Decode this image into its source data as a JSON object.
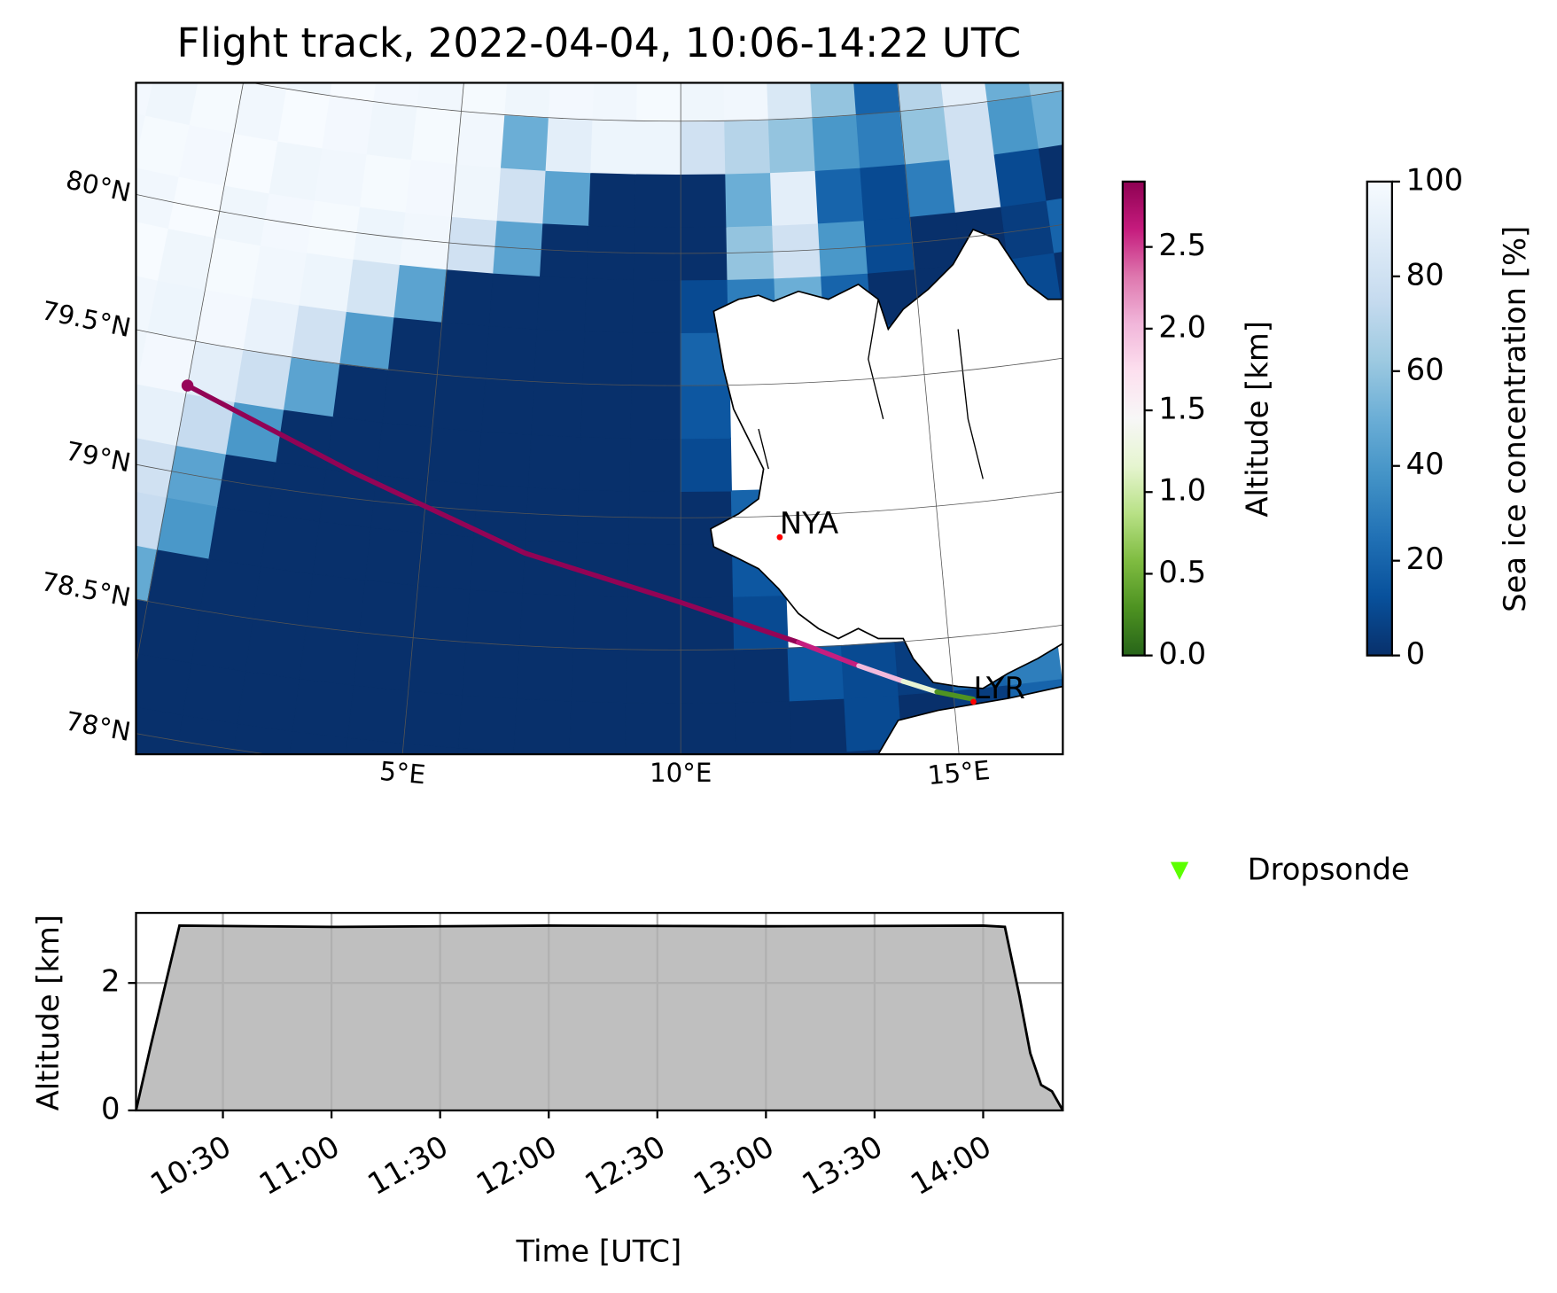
{
  "chart_data": [
    {
      "type": "map",
      "title": "Flight track, 2022-04-04, 10:06-14:22 UTC",
      "lon_ticks": [
        {
          "value": 5,
          "label": "5°E"
        },
        {
          "value": 10,
          "label": "10°E"
        },
        {
          "value": 15,
          "label": "15°E"
        }
      ],
      "lat_ticks": [
        {
          "value": 78,
          "label": "78°N"
        },
        {
          "value": 78.5,
          "label": "78.5°N"
        },
        {
          "value": 79,
          "label": "79°N"
        },
        {
          "value": 79.5,
          "label": "79.5°N"
        },
        {
          "value": 80,
          "label": "80°N"
        }
      ],
      "gridlines": {
        "lon": [
          0,
          5,
          10,
          15,
          20
        ],
        "lat": [
          78,
          78.5,
          79,
          79.5,
          80,
          80.5
        ]
      },
      "sea_ice": {
        "lon": [
          -2.5,
          -1.5,
          -0.5,
          0.5,
          1.5,
          2.5,
          3.5,
          4.5,
          5.5,
          6.5,
          7.5,
          8.5,
          9.5,
          10.5,
          11.5,
          12.5,
          13.5,
          14.5,
          15.5,
          16.5,
          17.5,
          18.5
        ],
        "lat": [
          78.0,
          78.2,
          78.4,
          78.6,
          78.8,
          79.0,
          79.2,
          79.4,
          79.6,
          79.8,
          80.0,
          80.2,
          80.4,
          80.6
        ],
        "values": [
          [
            0,
            0,
            0,
            0,
            0,
            0,
            0,
            0,
            0,
            0,
            0,
            0,
            0,
            0,
            0,
            0,
            0,
            10,
            null,
            null,
            null,
            null
          ],
          [
            0,
            0,
            0,
            0,
            0,
            0,
            0,
            0,
            0,
            0,
            0,
            0,
            0,
            0,
            0,
            0,
            10,
            0,
            5,
            20,
            null,
            null
          ],
          [
            78,
            42,
            0,
            0,
            0,
            0,
            0,
            0,
            0,
            0,
            0,
            0,
            0,
            0,
            0,
            15,
            10,
            5,
            20,
            30,
            null,
            null
          ],
          [
            96,
            82,
            48,
            0,
            0,
            0,
            0,
            0,
            0,
            0,
            0,
            0,
            0,
            0,
            10,
            null,
            null,
            null,
            null,
            null,
            null,
            null
          ],
          [
            98,
            94,
            76,
            40,
            0,
            0,
            0,
            0,
            0,
            0,
            0,
            0,
            0,
            0,
            15,
            null,
            null,
            null,
            null,
            null,
            null,
            null
          ],
          [
            97,
            99,
            80,
            45,
            0,
            0,
            0,
            0,
            0,
            0,
            0,
            0,
            0,
            0,
            20,
            null,
            null,
            null,
            null,
            null,
            null,
            null
          ],
          [
            95,
            98,
            92,
            75,
            40,
            0,
            0,
            0,
            0,
            0,
            0,
            0,
            0,
            10,
            null,
            null,
            null,
            null,
            null,
            null,
            null,
            null
          ],
          [
            99,
            96,
            98,
            90,
            78,
            45,
            0,
            0,
            0,
            0,
            0,
            0,
            0,
            15,
            null,
            null,
            null,
            null,
            null,
            null,
            null,
            null
          ],
          [
            100,
            97,
            95,
            98,
            93,
            80,
            42,
            0,
            0,
            0,
            0,
            0,
            0,
            20,
            null,
            null,
            null,
            10,
            0,
            null,
            15,
            0
          ],
          [
            98,
            100,
            96,
            99,
            97,
            95,
            82,
            45,
            0,
            0,
            0,
            0,
            0,
            10,
            30,
            50,
            20,
            0,
            0,
            0,
            10,
            0
          ],
          [
            99,
            97,
            100,
            96,
            98,
            99,
            95,
            97,
            80,
            45,
            0,
            0,
            0,
            0,
            60,
            80,
            40,
            10,
            0,
            0,
            5,
            20
          ],
          [
            97,
            99,
            98,
            100,
            96,
            97,
            99,
            98,
            96,
            80,
            45,
            0,
            0,
            0,
            50,
            90,
            20,
            10,
            30,
            80,
            10,
            0
          ],
          [
            98,
            96,
            99,
            97,
            100,
            98,
            96,
            99,
            97,
            50,
            90,
            95,
            95,
            80,
            70,
            60,
            40,
            30,
            60,
            80,
            40,
            50
          ],
          [
            99,
            98,
            97,
            99,
            96,
            100,
            98,
            97,
            99,
            96,
            98,
            97,
            99,
            96,
            97,
            85,
            60,
            20,
            70,
            90,
            50,
            60
          ]
        ],
        "colormap": [
          "#08306b",
          "#08519c",
          "#2171b5",
          "#4292c6",
          "#6baed6",
          "#9ecae1",
          "#c6dbef",
          "#deebf7",
          "#f7fbff"
        ],
        "colorbar": {
          "label": "Sea ice concentration [%]",
          "lim": [
            0,
            100
          ],
          "ticks": [
            0,
            20,
            40,
            60,
            80,
            100
          ]
        }
      },
      "track": {
        "lon": [
          0.0,
          3.5,
          7.0,
          10.0,
          12.2,
          13.3,
          14.1,
          14.7,
          15.35
        ],
        "lat": [
          79.33,
          79.1,
          78.85,
          78.68,
          78.52,
          78.42,
          78.35,
          78.3,
          78.26
        ],
        "altitude": [
          2.85,
          2.88,
          2.87,
          2.88,
          2.87,
          2.6,
          2.0,
          1.2,
          0.3
        ],
        "colormap": [
          "#276419",
          "#4d9221",
          "#7fbc41",
          "#b8e186",
          "#e6f5d0",
          "#f7f7f7",
          "#fde0ef",
          "#f1b6da",
          "#de77ae",
          "#c51b7d",
          "#8e0152"
        ],
        "colorbar": {
          "label": "Altitude [km]",
          "lim": [
            0,
            2.9
          ],
          "ticks": [
            {
              "value": 0,
              "label": "0.0"
            },
            0.5,
            {
              "value": 1,
              "label": "1.0"
            },
            1.5,
            {
              "value": 2,
              "label": "2.0"
            },
            2.5
          ]
        }
      },
      "stations": {
        "color": "#ff0000",
        "items": [
          {
            "name": "NYA",
            "lon": 11.92,
            "lat": 78.92
          },
          {
            "name": "LYR",
            "lon": 15.35,
            "lat": 78.25
          }
        ]
      },
      "legend": {
        "label": "Dropsonde",
        "color": "#5cff00"
      }
    },
    {
      "type": "area",
      "x": [
        "10:06",
        "10:10",
        "10:18",
        "11:00",
        "12:00",
        "13:00",
        "14:00",
        "14:06",
        "14:10",
        "14:13",
        "14:16",
        "14:19",
        "14:22"
      ],
      "values": [
        0,
        1.0,
        2.9,
        2.88,
        2.9,
        2.89,
        2.9,
        2.88,
        1.8,
        0.9,
        0.4,
        0.3,
        0
      ],
      "xlim": [
        "10:06",
        "14:22"
      ],
      "xticks": [
        "10:30",
        "11:00",
        "11:30",
        "12:00",
        "12:30",
        "13:00",
        "13:30",
        "14:00"
      ],
      "ylim": [
        0,
        3.1
      ],
      "yticks": [
        0,
        2
      ],
      "xlabel": "Time [UTC]",
      "ylabel": "Altitude [km]",
      "color": "#bfbfbf",
      "line_color": "#000000",
      "grid": true
    }
  ]
}
